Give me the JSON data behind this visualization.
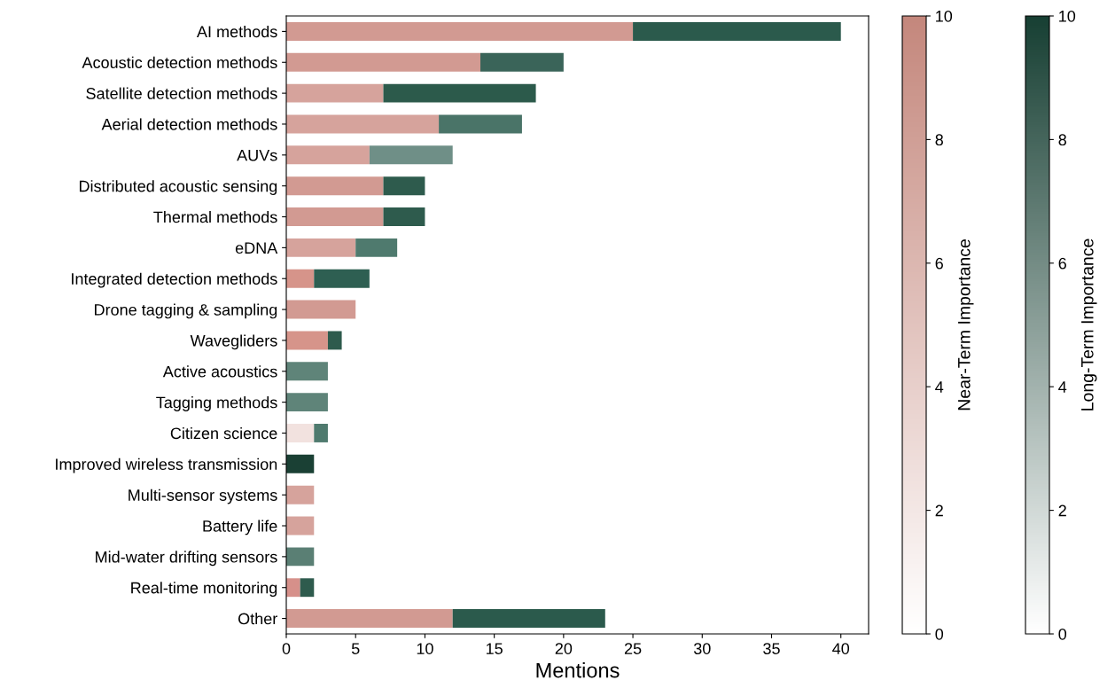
{
  "chart_data": {
    "type": "bar",
    "orientation": "horizontal",
    "stacked": true,
    "categories": [
      "AI methods",
      "Acoustic detection methods",
      "Satellite detection methods",
      "Aerial detection methods",
      "AUVs",
      "Distributed acoustic sensing",
      "Thermal methods",
      "eDNA",
      "Integrated detection methods",
      "Drone tagging & sampling",
      "Wavegliders",
      "Active acoustics",
      "Tagging methods",
      "Citizen science",
      "Improved wireless transmission",
      "Multi-sensor systems",
      "Battery life",
      "Mid-water drifting sensors",
      "Real-time monitoring",
      "Other"
    ],
    "series": [
      {
        "color": "#c4877c",
        "values": [
          25,
          14,
          7,
          11,
          6,
          7,
          7,
          5,
          2,
          5,
          3,
          0,
          0,
          2,
          0,
          2,
          2,
          0,
          1,
          12
        ],
        "colors": [
          "#d29a92",
          "#d29a92",
          "#d6a39c",
          "#d6a39c",
          "#d6a39c",
          "#d29a92",
          "#d29a92",
          "#d6a39c",
          "#d6948a",
          "#d29a92",
          "#d6948a",
          null,
          null,
          "#f2e2df",
          null,
          "#d6a39c",
          "#d6a39c",
          null,
          "#d6908a",
          "#d29a92"
        ]
      },
      {
        "color": "#173f33",
        "values": [
          15,
          6,
          11,
          6,
          6,
          3,
          3,
          3,
          4,
          0,
          1,
          3,
          3,
          1,
          2,
          0,
          0,
          2,
          1,
          11
        ],
        "colors": [
          "#2b5a4c",
          "#3a6459",
          "#2c5a4b",
          "#4a7468",
          "#6f8f87",
          "#2e5b4d",
          "#2e5b4d",
          "#4f7a6e",
          "#2e5f52",
          null,
          "#2e5b4d",
          "#5f8479",
          "#5f8479",
          "#4f7a6e",
          "#1a4034",
          null,
          null,
          "#5a7f74",
          "#2e5b4d",
          "#2b5a4c"
        ]
      }
    ],
    "xlabel": "Mentions",
    "xlim": [
      0,
      42
    ],
    "xticks": [
      0,
      5,
      10,
      15,
      20,
      25,
      30,
      35,
      40
    ],
    "clabel": "Near-Term Importance",
    "clim": [
      0,
      10
    ],
    "cticks": [
      0,
      2,
      4,
      6,
      8,
      10
    ],
    "annotations": [
      "Long-Term Importance"
    ],
    "y2lim": [
      0,
      10
    ],
    "y2ticks": [
      0,
      2,
      4,
      6,
      8,
      10
    ]
  }
}
